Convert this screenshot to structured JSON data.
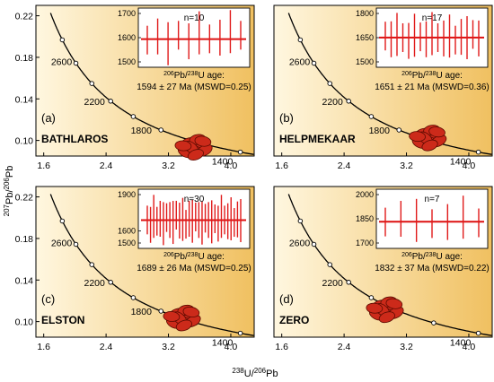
{
  "chart_data": [
    {
      "type": "scatter",
      "letter": "(a)",
      "sample": "BATHLAROS",
      "xlim": [
        1.5,
        4.3
      ],
      "ylim": [
        0.085,
        0.23
      ],
      "xticks": [
        "1.6",
        "2.4",
        "3.2",
        "4.0"
      ],
      "yticks": [
        "0.10",
        "0.14",
        "0.18",
        "0.22"
      ],
      "concordia_ages": [
        "2600",
        "2200",
        "1800",
        "1400"
      ],
      "ellipse_cluster": {
        "x": 3.55,
        "y": 0.094
      },
      "inset": {
        "n_label": "n=10",
        "yticks": [
          "1700",
          "1600",
          "1500"
        ],
        "ylim": [
          1500,
          1700
        ],
        "weighted_mean": 1594,
        "ages": [
          1590,
          1605,
          1575,
          1610,
          1585,
          1620,
          1595,
          1600,
          1625,
          1610
        ],
        "age_text": "1594 ± 27 Ma (MSWD=0.25)"
      }
    },
    {
      "type": "scatter",
      "letter": "(b)",
      "sample": "HELPMEKAAR",
      "xlim": [
        1.5,
        4.3
      ],
      "ylim": [
        0.085,
        0.23
      ],
      "xticks": [
        "1.6",
        "2.4",
        "3.2",
        "4.0"
      ],
      "yticks": [],
      "concordia_ages": [
        "2600",
        "2200",
        "1800",
        "1400"
      ],
      "ellipse_cluster": {
        "x": 3.5,
        "y": 0.103
      },
      "inset": {
        "n_label": "n=17",
        "yticks": [
          "1800",
          "1650",
          "1500"
        ],
        "ylim": [
          1500,
          1800
        ],
        "weighted_mean": 1651,
        "ages": [
          1660,
          1640,
          1670,
          1650,
          1630,
          1665,
          1655,
          1640,
          1675,
          1650,
          1645,
          1660,
          1635,
          1655,
          1650,
          1670,
          1645
        ],
        "age_text": "1651 ± 21 Ma (MSWD=0.36)"
      }
    },
    {
      "type": "scatter",
      "letter": "(c)",
      "sample": "ELSTON",
      "xlim": [
        1.5,
        4.3
      ],
      "ylim": [
        0.085,
        0.23
      ],
      "xticks": [
        "1.6",
        "2.4",
        "3.2",
        "4.0"
      ],
      "yticks": [
        "0.10",
        "0.14",
        "0.18",
        "0.22"
      ],
      "concordia_ages": [
        "2600",
        "2200",
        "1800",
        "1400"
      ],
      "ellipse_cluster": {
        "x": 3.4,
        "y": 0.104
      },
      "inset": {
        "n_label": "n=30",
        "yticks": [
          "1900",
          "1600",
          "1500"
        ],
        "ylim": [
          1500,
          1900
        ],
        "weighted_mean": 1689,
        "ages": [
          1690,
          1650,
          1720,
          1680,
          1700,
          1660,
          1710,
          1690,
          1670,
          1730,
          1685,
          1695,
          1655,
          1700,
          1680,
          1715,
          1690,
          1665,
          1705,
          1690,
          1675,
          1700,
          1660,
          1720,
          1690,
          1680,
          1700,
          1670,
          1695,
          1685
        ],
        "age_text": "1689 ± 26 Ma (MSWD=0.25)"
      }
    },
    {
      "type": "scatter",
      "letter": "(d)",
      "sample": "ZERO",
      "xlim": [
        1.5,
        4.3
      ],
      "ylim": [
        0.085,
        0.23
      ],
      "xticks": [
        "1.6",
        "2.4",
        "3.2",
        "4.0"
      ],
      "yticks": [],
      "concordia_ages": [
        "2600",
        "2200",
        "1800",
        "1400"
      ],
      "ellipse_cluster": {
        "x": 2.95,
        "y": 0.112
      },
      "inset": {
        "n_label": "n=7",
        "yticks": [
          "2000",
          "1850",
          "1700"
        ],
        "ylim": [
          1700,
          2000
        ],
        "weighted_mean": 1832,
        "ages": [
          1830,
          1850,
          1840,
          1820,
          1830,
          1860,
          1825
        ],
        "age_text": "1832 ± 37 Ma (MSWD=0.22)"
      }
    }
  ],
  "y_axis_label": "207Pb/206Pb",
  "x_axis_label": "238U/206Pb",
  "inset_title": "206Pb/238U age:",
  "colors": {
    "background_light": "#fff7e0",
    "background_dark": "#f0c060",
    "ellipse_fill": "#cc2a1a",
    "ellipse_stroke": "#5a0a00",
    "inset_bar": "#e01a1a",
    "inset_mean": "#d11",
    "curve": "#000000"
  }
}
